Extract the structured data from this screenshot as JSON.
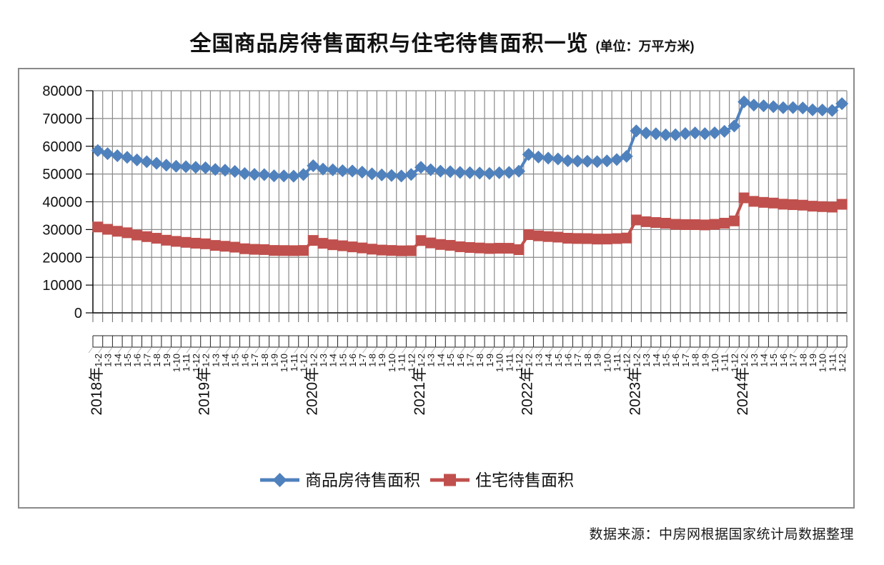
{
  "page": {
    "title_main": "全国商品房待售面积与住宅待售面积一览",
    "title_unit": "(单位：万平方米)",
    "source_note": "数据来源：中房网根据国家统计局数据整理"
  },
  "colors": {
    "series_commercial": "#4F81BD",
    "series_residential": "#C0504D",
    "gridline": "#8a8a8a",
    "axis": "#000000",
    "frame_border": "#8a8a8a",
    "text": "#111111"
  },
  "chart_data": {
    "type": "line",
    "title": "全国商品房待售面积与住宅待售面积一览",
    "unit_label": "(单位：万平方米)",
    "xlabel": "",
    "ylabel": "",
    "ylim": [
      0,
      80000
    ],
    "ytick_interval": 10000,
    "ytick_labels": [
      "0",
      "10000",
      "20000",
      "30000",
      "40000",
      "50000",
      "60000",
      "70000",
      "80000"
    ],
    "grid": true,
    "legend_position": "bottom",
    "years": [
      "2018年",
      "2019年",
      "2020年",
      "2021年",
      "2022年",
      "2023年",
      "2024年"
    ],
    "month_labels": [
      "1-2",
      "1-3",
      "1-4",
      "1-5",
      "1-6",
      "1-7",
      "1-8",
      "1-9",
      "1-10",
      "1-11",
      "1-12"
    ],
    "categories": [
      "2018年1-2",
      "1-3",
      "1-4",
      "1-5",
      "1-6",
      "1-7",
      "1-8",
      "1-9",
      "1-10",
      "1-11",
      "1-12",
      "2019年1-2",
      "1-3",
      "1-4",
      "1-5",
      "1-6",
      "1-7",
      "1-8",
      "1-9",
      "1-10",
      "1-11",
      "1-12",
      "2020年1-2",
      "1-3",
      "1-4",
      "1-5",
      "1-6",
      "1-7",
      "1-8",
      "1-9",
      "1-10",
      "1-11",
      "1-12",
      "2021年1-2",
      "1-3",
      "1-4",
      "1-5",
      "1-6",
      "1-7",
      "1-8",
      "1-9",
      "1-10",
      "1-11",
      "1-12",
      "2022年1-2",
      "1-3",
      "1-4",
      "1-5",
      "1-6",
      "1-7",
      "1-8",
      "1-9",
      "1-10",
      "1-11",
      "1-12",
      "2023年1-2",
      "1-3",
      "1-4",
      "1-5",
      "1-6",
      "1-7",
      "1-8",
      "1-9",
      "1-10",
      "1-11",
      "1-12",
      "2024年1-2",
      "1-3",
      "1-4",
      "1-5",
      "1-6",
      "1-7",
      "1-8",
      "1-9",
      "1-10",
      "1-11",
      "1-12"
    ],
    "series": [
      {
        "name": "商品房待售面积",
        "color": "#4F81BD",
        "marker": "diamond",
        "values": [
          58468,
          57329,
          56579,
          56010,
          55083,
          54428,
          53873,
          53191,
          52789,
          52627,
          52414,
          52251,
          51646,
          51380,
          50928,
          50162,
          49876,
          49784,
          49346,
          49323,
          49221,
          49821,
          52985,
          51779,
          51513,
          51184,
          51095,
          50691,
          50052,
          49680,
          49492,
          49287,
          49850,
          52425,
          51552,
          51021,
          50843,
          50581,
          50492,
          50359,
          50191,
          50438,
          50576,
          51023,
          57026,
          56113,
          55735,
          55433,
          54784,
          54655,
          54605,
          54467,
          54734,
          55203,
          56366,
          65528,
          64770,
          64487,
          64120,
          64159,
          64564,
          64795,
          64537,
          64835,
          65385,
          67295,
          75969,
          74833,
          74553,
          74256,
          73894,
          73926,
          73799,
          73113,
          73057,
          72909,
          75327
        ]
      },
      {
        "name": "住宅待售面积",
        "color": "#C0504D",
        "marker": "square",
        "values": [
          30930,
          30090,
          29385,
          28844,
          28026,
          27447,
          26869,
          26162,
          25742,
          25393,
          25091,
          24869,
          24281,
          23984,
          23655,
          23093,
          22878,
          22788,
          22482,
          22443,
          22403,
          22473,
          26080,
          25049,
          24528,
          24164,
          23764,
          23383,
          22944,
          22616,
          22477,
          22333,
          22379,
          26042,
          25183,
          24621,
          24316,
          23806,
          23545,
          23361,
          23169,
          23269,
          23256,
          22761,
          28164,
          27738,
          27478,
          27270,
          26874,
          26778,
          26740,
          26573,
          26590,
          26752,
          26947,
          33452,
          32826,
          32536,
          32283,
          31893,
          31790,
          31767,
          31665,
          31872,
          32294,
          33119,
          41414,
          40153,
          39788,
          39544,
          39129,
          38965,
          38784,
          38420,
          38254,
          38084,
          39088
        ]
      }
    ]
  }
}
